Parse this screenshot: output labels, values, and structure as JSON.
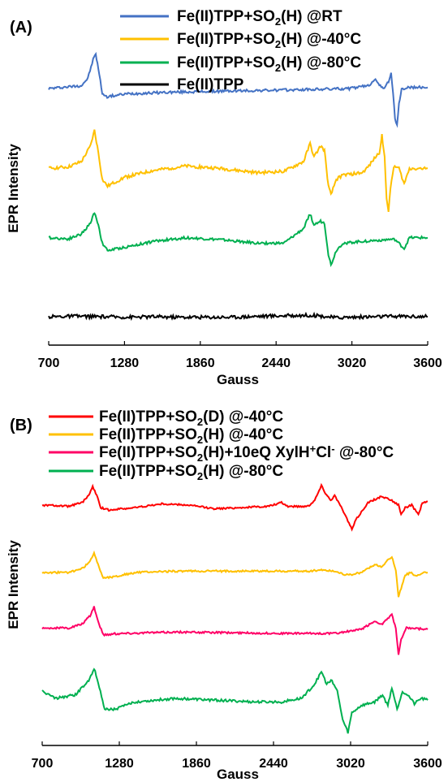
{
  "chart_data": [
    {
      "panel": "(A)",
      "type": "line",
      "xlabel": "Gauss",
      "ylabel": "EPR Intensity",
      "xlim": [
        700,
        3600
      ],
      "xticks": [
        "700",
        "1280",
        "1860",
        "2440",
        "3020",
        "3600"
      ],
      "grid": false,
      "legend_placement": "top",
      "series": [
        {
          "legend_main": "Fe(II)TPP+SO",
          "legend_sub": "2",
          "legend_rest": "(H) @RT",
          "color": "#4472C4",
          "points": [
            [
              700,
              0.02
            ],
            [
              950,
              0.1
            ],
            [
              1000,
              0.3
            ],
            [
              1040,
              0.8
            ],
            [
              1060,
              0.95
            ],
            [
              1080,
              0.55
            ],
            [
              1110,
              -0.1
            ],
            [
              1140,
              -0.2
            ],
            [
              1300,
              -0.12
            ],
            [
              1600,
              -0.08
            ],
            [
              2000,
              -0.05
            ],
            [
              2500,
              -0.02
            ],
            [
              3000,
              0.02
            ],
            [
              3150,
              0.1
            ],
            [
              3200,
              0.3
            ],
            [
              3230,
              0.1
            ],
            [
              3260,
              0.02
            ],
            [
              3300,
              0.2
            ],
            [
              3320,
              0.45
            ],
            [
              3335,
              -0.1
            ],
            [
              3350,
              -0.8
            ],
            [
              3365,
              -0.95
            ],
            [
              3380,
              -0.4
            ],
            [
              3400,
              0.0
            ],
            [
              3450,
              0.05
            ],
            [
              3600,
              0.05
            ]
          ]
        },
        {
          "legend_main": "Fe(II)TPP+SO",
          "legend_sub": "2",
          "legend_rest": "(H) @-40°C",
          "color": "#FFC000",
          "points": [
            [
              700,
              0.05
            ],
            [
              850,
              0.08
            ],
            [
              950,
              0.2
            ],
            [
              1020,
              0.55
            ],
            [
              1050,
              0.9
            ],
            [
              1080,
              0.4
            ],
            [
              1110,
              -0.2
            ],
            [
              1150,
              -0.35
            ],
            [
              1280,
              -0.15
            ],
            [
              1500,
              0.0
            ],
            [
              1750,
              0.1
            ],
            [
              2000,
              0.05
            ],
            [
              2300,
              -0.05
            ],
            [
              2500,
              -0.02
            ],
            [
              2650,
              0.2
            ],
            [
              2700,
              0.6
            ],
            [
              2730,
              0.3
            ],
            [
              2780,
              0.55
            ],
            [
              2810,
              0.45
            ],
            [
              2840,
              -0.35
            ],
            [
              2860,
              -0.55
            ],
            [
              2900,
              -0.2
            ],
            [
              2950,
              -0.1
            ],
            [
              3100,
              -0.05
            ],
            [
              3150,
              0.1
            ],
            [
              3200,
              0.3
            ],
            [
              3230,
              0.4
            ],
            [
              3250,
              0.8
            ],
            [
              3270,
              0.3
            ],
            [
              3285,
              -0.6
            ],
            [
              3300,
              -0.95
            ],
            [
              3315,
              -0.4
            ],
            [
              3340,
              0.1
            ],
            [
              3380,
              0.05
            ],
            [
              3420,
              -0.3
            ],
            [
              3460,
              0.05
            ],
            [
              3600,
              0.05
            ]
          ]
        },
        {
          "legend_main": "Fe(II)TPP+SO",
          "legend_sub": "2",
          "legend_rest": "(H) @-80°C",
          "color": "#00B050",
          "points": [
            [
              700,
              0.05
            ],
            [
              850,
              0.02
            ],
            [
              950,
              0.15
            ],
            [
              1020,
              0.45
            ],
            [
              1050,
              0.75
            ],
            [
              1080,
              0.4
            ],
            [
              1110,
              -0.1
            ],
            [
              1150,
              -0.3
            ],
            [
              1300,
              -0.2
            ],
            [
              1500,
              -0.05
            ],
            [
              1750,
              0.05
            ],
            [
              2000,
              0.0
            ],
            [
              2300,
              -0.1
            ],
            [
              2500,
              -0.1
            ],
            [
              2650,
              0.3
            ],
            [
              2700,
              0.7
            ],
            [
              2730,
              0.4
            ],
            [
              2780,
              0.5
            ],
            [
              2810,
              0.45
            ],
            [
              2840,
              -0.4
            ],
            [
              2860,
              -0.7
            ],
            [
              2900,
              -0.3
            ],
            [
              2950,
              -0.1
            ],
            [
              3100,
              -0.05
            ],
            [
              3300,
              0.0
            ],
            [
              3350,
              0.0
            ],
            [
              3420,
              -0.25
            ],
            [
              3460,
              0.05
            ],
            [
              3600,
              0.05
            ]
          ]
        },
        {
          "legend_main": "Fe(II)TPP",
          "legend_sub": "",
          "legend_rest": "",
          "color": "#000000",
          "points": [
            [
              700,
              0.0
            ],
            [
              900,
              0.05
            ],
            [
              1100,
              0.0
            ],
            [
              1300,
              -0.05
            ],
            [
              1500,
              0.0
            ],
            [
              1700,
              -0.05
            ],
            [
              1900,
              -0.05
            ],
            [
              2100,
              -0.05
            ],
            [
              2300,
              0.05
            ],
            [
              2500,
              0.1
            ],
            [
              2700,
              0.15
            ],
            [
              2800,
              0.05
            ],
            [
              2900,
              -0.1
            ],
            [
              3000,
              -0.05
            ],
            [
              3200,
              0.0
            ],
            [
              3400,
              0.05
            ],
            [
              3600,
              0.0
            ]
          ]
        }
      ]
    },
    {
      "panel": "(B)",
      "type": "line",
      "xlabel": "Gauss",
      "ylabel": "EPR Intensity",
      "xlim": [
        700,
        3600
      ],
      "xticks": [
        "700",
        "1280",
        "1860",
        "2440",
        "3020",
        "3600"
      ],
      "grid": false,
      "legend_placement": "top",
      "series": [
        {
          "legend_main": "Fe(II)TPP+SO",
          "legend_sub": "2",
          "legend_rest": "(D)  @-40°C",
          "color": "#FF0000",
          "points": [
            [
              700,
              0.1
            ],
            [
              900,
              0.05
            ],
            [
              1000,
              0.2
            ],
            [
              1050,
              0.5
            ],
            [
              1080,
              0.85
            ],
            [
              1110,
              0.5
            ],
            [
              1140,
              0.0
            ],
            [
              1200,
              -0.1
            ],
            [
              1400,
              0.0
            ],
            [
              1600,
              0.15
            ],
            [
              1800,
              0.1
            ],
            [
              2000,
              -0.05
            ],
            [
              2200,
              0.0
            ],
            [
              2400,
              0.05
            ],
            [
              2500,
              0.2
            ],
            [
              2550,
              0.05
            ],
            [
              2700,
              0.05
            ],
            [
              2750,
              0.3
            ],
            [
              2800,
              0.9
            ],
            [
              2830,
              0.6
            ],
            [
              2870,
              0.3
            ],
            [
              2900,
              0.5
            ],
            [
              2950,
              0.0
            ],
            [
              3000,
              -0.55
            ],
            [
              3030,
              -0.9
            ],
            [
              3060,
              -0.5
            ],
            [
              3150,
              0.2
            ],
            [
              3250,
              0.45
            ],
            [
              3330,
              0.3
            ],
            [
              3380,
              0.1
            ],
            [
              3400,
              -0.3
            ],
            [
              3430,
              0.0
            ],
            [
              3480,
              0.1
            ],
            [
              3530,
              -0.3
            ],
            [
              3560,
              0.2
            ],
            [
              3600,
              0.25
            ]
          ]
        },
        {
          "legend_main": "Fe(II)TPP+SO",
          "legend_sub": "2",
          "legend_rest": "(H)  @-40°C",
          "color": "#FFC000",
          "points": [
            [
              700,
              0.0
            ],
            [
              900,
              0.0
            ],
            [
              1000,
              0.15
            ],
            [
              1060,
              0.4
            ],
            [
              1090,
              0.75
            ],
            [
              1120,
              0.3
            ],
            [
              1160,
              -0.2
            ],
            [
              1250,
              -0.15
            ],
            [
              1400,
              0.0
            ],
            [
              1700,
              0.05
            ],
            [
              2200,
              0.05
            ],
            [
              2700,
              0.05
            ],
            [
              2800,
              0.1
            ],
            [
              2900,
              0.05
            ],
            [
              3000,
              -0.1
            ],
            [
              3100,
              0.0
            ],
            [
              3200,
              0.3
            ],
            [
              3250,
              0.2
            ],
            [
              3330,
              0.6
            ],
            [
              3360,
              0.1
            ],
            [
              3380,
              -0.9
            ],
            [
              3400,
              -0.6
            ],
            [
              3430,
              -0.1
            ],
            [
              3470,
              0.0
            ],
            [
              3510,
              -0.15
            ],
            [
              3560,
              0.0
            ],
            [
              3600,
              0.0
            ]
          ]
        },
        {
          "legend_main": "Fe(II)TPP+SO",
          "legend_sub": "2",
          "legend_rest": "(H)+10eQ XylH",
          "legend_sup": "+",
          "legend_rest2": "Cl",
          "legend_sup2": "-",
          "legend_rest3": " @-80°C",
          "color": "#FF0066",
          "points": [
            [
              700,
              0.05
            ],
            [
              900,
              0.05
            ],
            [
              1000,
              0.2
            ],
            [
              1060,
              0.5
            ],
            [
              1090,
              0.85
            ],
            [
              1120,
              0.3
            ],
            [
              1160,
              -0.2
            ],
            [
              1300,
              -0.15
            ],
            [
              1700,
              -0.1
            ],
            [
              2500,
              -0.15
            ],
            [
              2900,
              -0.15
            ],
            [
              3100,
              0.0
            ],
            [
              3200,
              0.3
            ],
            [
              3260,
              0.2
            ],
            [
              3330,
              0.55
            ],
            [
              3360,
              0.05
            ],
            [
              3380,
              -0.95
            ],
            [
              3400,
              -0.4
            ],
            [
              3440,
              0.05
            ],
            [
              3600,
              0.0
            ]
          ]
        },
        {
          "legend_main": "Fe(II)TPP+SO",
          "legend_sub": "2",
          "legend_rest": "(H)  @-80°C",
          "color": "#00B050",
          "points": [
            [
              700,
              0.2
            ],
            [
              800,
              0.0
            ],
            [
              950,
              0.1
            ],
            [
              1050,
              0.5
            ],
            [
              1090,
              0.85
            ],
            [
              1130,
              0.3
            ],
            [
              1170,
              -0.3
            ],
            [
              1250,
              -0.3
            ],
            [
              1400,
              -0.1
            ],
            [
              1700,
              0.0
            ],
            [
              2000,
              -0.05
            ],
            [
              2300,
              -0.1
            ],
            [
              2500,
              -0.1
            ],
            [
              2650,
              0.0
            ],
            [
              2750,
              0.4
            ],
            [
              2800,
              0.75
            ],
            [
              2840,
              0.4
            ],
            [
              2880,
              0.5
            ],
            [
              2920,
              0.2
            ],
            [
              2960,
              -0.6
            ],
            [
              3000,
              -0.95
            ],
            [
              3030,
              -0.4
            ],
            [
              3100,
              -0.2
            ],
            [
              3200,
              -0.1
            ],
            [
              3260,
              0.1
            ],
            [
              3300,
              -0.2
            ],
            [
              3330,
              0.3
            ],
            [
              3370,
              -0.3
            ],
            [
              3410,
              0.2
            ],
            [
              3450,
              0.1
            ],
            [
              3500,
              -0.15
            ],
            [
              3550,
              0.0
            ],
            [
              3600,
              -0.05
            ]
          ]
        }
      ]
    }
  ]
}
